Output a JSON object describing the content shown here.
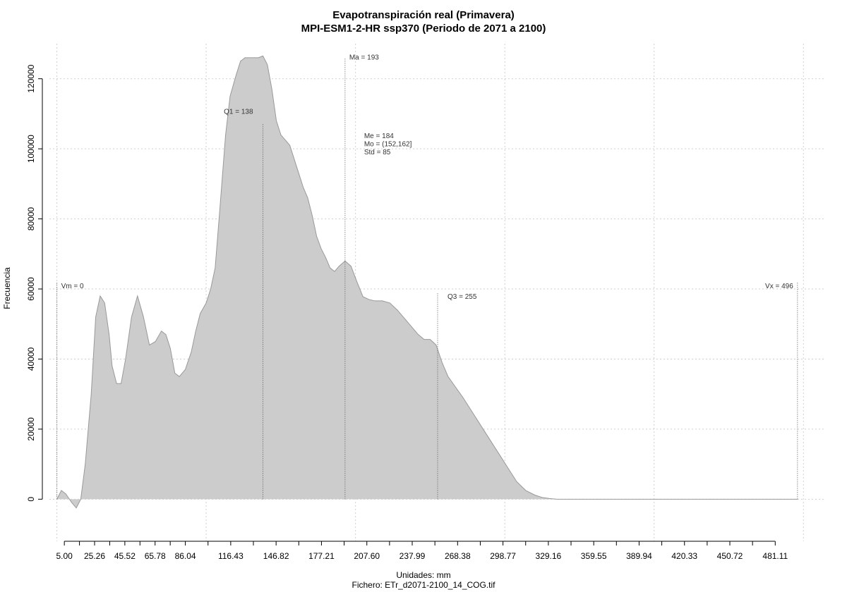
{
  "chart_data": {
    "type": "area",
    "title": "Evapotranspiración real (Primavera)",
    "subtitle": "MPI-ESM1-2-HR ssp370 (Periodo de 2071 a 2100)",
    "xlabel": "Unidades: mm",
    "caption": "Fichero: ETr_d2071-2100_14_COG.tif",
    "ylabel": "Frecuencia",
    "xlim": [
      -5,
      515
    ],
    "ylim": [
      -12000,
      130000
    ],
    "x_ticks": [
      5,
      25.26,
      45.52,
      65.78,
      86.04,
      116.43,
      146.82,
      177.21,
      207.6,
      237.99,
      268.38,
      298.77,
      329.16,
      359.55,
      389.94,
      420.33,
      450.72,
      481.11
    ],
    "x_tick_labels": [
      "5.00",
      "25.26",
      "45.52",
      "65.78",
      "86.04",
      "116.43",
      "146.82",
      "177.21",
      "207.60",
      "237.99",
      "268.38",
      "298.77",
      "329.16",
      "359.55",
      "389.94",
      "420.33",
      "450.72",
      "481.11"
    ],
    "y_ticks": [
      0,
      20000,
      40000,
      60000,
      80000,
      100000,
      120000
    ],
    "y_tick_labels": [
      "0",
      "20000",
      "40000",
      "60000",
      "80000",
      "100000",
      "120000"
    ],
    "x_grid": [
      0,
      100,
      200,
      300,
      400,
      500
    ],
    "grid": true,
    "fill_color": "#cccccc",
    "line_color": "#999999",
    "density": {
      "x": [
        0,
        3,
        6,
        10,
        13,
        16,
        19,
        23,
        26,
        29,
        32,
        35,
        37,
        40,
        43,
        46,
        50,
        54,
        58,
        62,
        66,
        70,
        73,
        76,
        79,
        82,
        86,
        90,
        93,
        96,
        100,
        103,
        106,
        109,
        113,
        116,
        120,
        123,
        126,
        129,
        132,
        135,
        138,
        141,
        144,
        147,
        150,
        153,
        156,
        159,
        162,
        165,
        168,
        171,
        174,
        177,
        180,
        183,
        186,
        189,
        193,
        197,
        201,
        205,
        209,
        213,
        218,
        223,
        228,
        233,
        238,
        242,
        246,
        250,
        254,
        258,
        262,
        267,
        272,
        278,
        284,
        290,
        296,
        302,
        308,
        314,
        320,
        325,
        330,
        335,
        340,
        345,
        350,
        355,
        360,
        365,
        370,
        375,
        380,
        385,
        390,
        395,
        400,
        405,
        410,
        415,
        420,
        425,
        430,
        440,
        450,
        460,
        470,
        480,
        490,
        496
      ],
      "y": [
        0,
        2500,
        1500,
        -1000,
        -2500,
        0,
        10000,
        30000,
        52000,
        58000,
        56000,
        47000,
        38000,
        33000,
        33000,
        40000,
        52000,
        58000,
        52000,
        44000,
        45000,
        48000,
        47000,
        43000,
        36000,
        35000,
        37000,
        42000,
        48000,
        53000,
        56000,
        60000,
        66000,
        82000,
        104000,
        115000,
        121000,
        125000,
        126000,
        126000,
        126000,
        126000,
        126500,
        124000,
        117000,
        108000,
        104000,
        102500,
        101000,
        97000,
        93000,
        89000,
        86000,
        81000,
        75000,
        71500,
        69000,
        66000,
        65000,
        66500,
        68000,
        66500,
        62000,
        57800,
        57000,
        56600,
        56600,
        56000,
        54000,
        51500,
        49000,
        47000,
        45600,
        45600,
        44000,
        39000,
        35000,
        32000,
        29000,
        25000,
        21000,
        17000,
        13000,
        9000,
        5000,
        2500,
        1200,
        500,
        200,
        0,
        0,
        0,
        0,
        0,
        0,
        0,
        0,
        0,
        0,
        0,
        0,
        0,
        0,
        0,
        0,
        0,
        0,
        0,
        0,
        0,
        0,
        0,
        0,
        0,
        0,
        0
      ]
    },
    "markers": [
      {
        "x": 0,
        "label": "Vm = 0"
      },
      {
        "x": 138,
        "label": "Q1 = 138"
      },
      {
        "x": 193,
        "label": "Ma = 193"
      },
      {
        "x": 255,
        "label": "Q3 = 255"
      },
      {
        "x": 496,
        "label": "Vx = 496"
      }
    ],
    "stats": [
      "Me = 184",
      "Mo = (152,162]",
      "Std = 85"
    ]
  }
}
